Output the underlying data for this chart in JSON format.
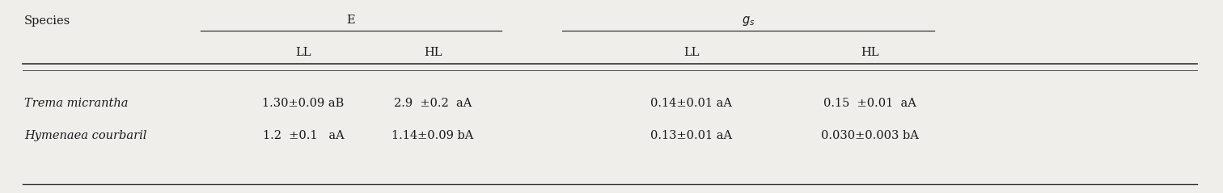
{
  "title_col1": "Species",
  "col_group1_label": "E",
  "col_group2_label": "$g_s$",
  "sub_col_labels": [
    "LL",
    "HL",
    "LL",
    "HL"
  ],
  "row1_species": "Trema micrantha",
  "row2_species": "Hymenaea courbaril",
  "row1_data": [
    "1.30±0.09 aB",
    "2.9  ±0.2  aA",
    "0.14±0.01 aA",
    "0.15  ±0.01  aA"
  ],
  "row2_data": [
    "1.2  ±0.1   aA",
    "1.14±0.09 bA",
    "0.13±0.01 aA",
    "0.030±0.003 bA"
  ],
  "bg_color": "#f0eeeb",
  "text_color": "#1a1a1a",
  "line_color": "#333333",
  "font_size": 10.5,
  "header_font_size": 10.5
}
